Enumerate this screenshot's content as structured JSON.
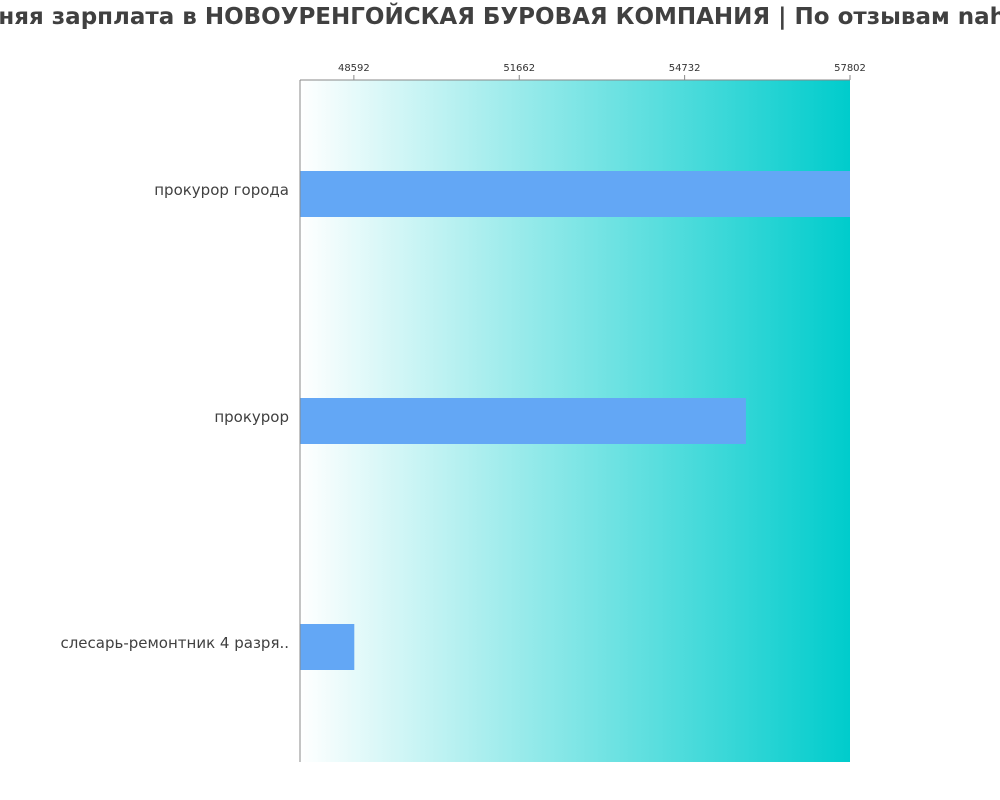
{
  "chart_data": {
    "type": "bar",
    "orientation": "horizontal",
    "title": "Средняя зарплата в НОВОУРЕНГОЙСКАЯ БУРОВАЯ КОМПАНИЯ | По отзывам nahodka",
    "categories": [
      "прокурор города",
      "прокурор",
      "слесарь-ремонтник 4 разря.."
    ],
    "values": [
      57802,
      55870,
      48600
    ],
    "xlim": [
      47592,
      57802
    ],
    "xticks": [
      48592,
      51662,
      54732,
      57802
    ],
    "xtick_position": "top",
    "grid": false,
    "legend": "none",
    "colors": {
      "bar": "#63a7f5",
      "background_gradient_start": "#ffffff",
      "background_gradient_end": "#00cccc",
      "axis": "#888888",
      "text": "#404040"
    }
  }
}
